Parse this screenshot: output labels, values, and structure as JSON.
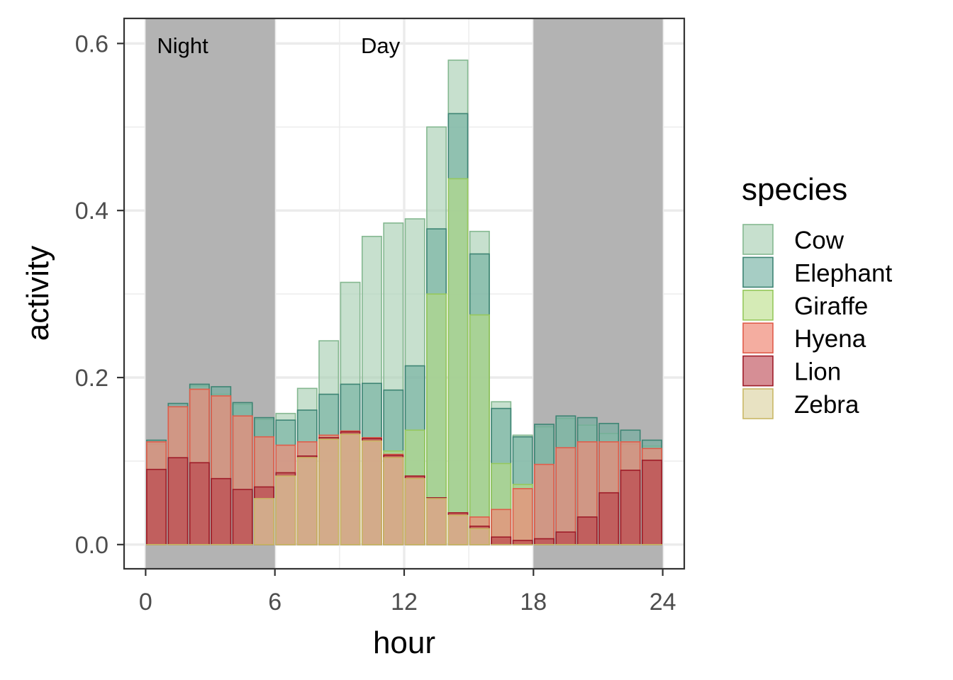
{
  "chart_data": {
    "type": "bar",
    "xlabel": "hour",
    "ylabel": "activity",
    "xlim": [
      -1,
      25
    ],
    "ylim": [
      -0.029,
      0.63
    ],
    "x_ticks": [
      "0",
      "6",
      "12",
      "18",
      "24"
    ],
    "y_ticks": [
      "0.0",
      "0.2",
      "0.4",
      "0.6"
    ],
    "grid": true,
    "legend": {
      "title": "species",
      "position": "right"
    },
    "annotations": [
      {
        "label": "Night",
        "shade": "#b3b3b3",
        "x_range": [
          0,
          6
        ]
      },
      {
        "label": "Day",
        "shade": null,
        "x_range": [
          6,
          18
        ]
      },
      {
        "label": "",
        "shade": "#b3b3b3",
        "x_range": [
          18,
          24
        ]
      }
    ],
    "hours": [
      1,
      2,
      3,
      4,
      5,
      6,
      7,
      8,
      9,
      10,
      11,
      12,
      13,
      14,
      15,
      16,
      17,
      18,
      19,
      20,
      21,
      22,
      23,
      24
    ],
    "series": [
      {
        "name": "Cow",
        "fill": "#a9cfb3",
        "stroke": "#84b890",
        "fill_opacity": 0.65,
        "values": [
          0.12,
          0.165,
          0.19,
          0.18,
          0.168,
          0.15,
          0.157,
          0.187,
          0.244,
          0.314,
          0.369,
          0.385,
          0.39,
          0.5,
          0.58,
          0.375,
          0.171,
          0.131,
          0.141,
          0.151,
          0.143,
          0.133,
          0.12,
          0.118
        ]
      },
      {
        "name": "Elephant",
        "fill": "#6aab9c",
        "stroke": "#3d8473",
        "fill_opacity": 0.6,
        "values": [
          0.125,
          0.169,
          0.192,
          0.189,
          0.17,
          0.152,
          0.149,
          0.161,
          0.18,
          0.192,
          0.193,
          0.185,
          0.214,
          0.378,
          0.516,
          0.348,
          0.163,
          0.129,
          0.144,
          0.154,
          0.152,
          0.145,
          0.137,
          0.125
        ]
      },
      {
        "name": "Giraffe",
        "fill": "#b9dd86",
        "stroke": "#96c85c",
        "fill_opacity": 0.6,
        "values": [
          0.0,
          0.0,
          0.0,
          0.0,
          0.0,
          0.0,
          0.0,
          0.0,
          0.0,
          0.0,
          0.0,
          0.112,
          0.137,
          0.3,
          0.438,
          0.275,
          0.097,
          0.072,
          0.0,
          0.0,
          0.0,
          0.0,
          0.0,
          0.0
        ]
      },
      {
        "name": "Hyena",
        "fill": "#f08a78",
        "stroke": "#e05c4a",
        "fill_opacity": 0.7,
        "values": [
          0.123,
          0.165,
          0.186,
          0.178,
          0.154,
          0.129,
          0.119,
          0.123,
          0.131,
          0.136,
          0.128,
          0.108,
          0.082,
          0.056,
          0.038,
          0.033,
          0.042,
          0.067,
          0.096,
          0.116,
          0.123,
          0.123,
          0.123,
          0.115
        ]
      },
      {
        "name": "Lion",
        "fill": "#b5323e",
        "stroke": "#9e1c28",
        "fill_opacity": 0.55,
        "values": [
          0.09,
          0.104,
          0.098,
          0.079,
          0.066,
          0.069,
          0.086,
          0.106,
          0.128,
          0.135,
          0.127,
          0.107,
          0.082,
          0.056,
          0.038,
          0.022,
          0.009,
          0.005,
          0.007,
          0.015,
          0.033,
          0.062,
          0.089,
          0.101
        ]
      },
      {
        "name": "Zebra",
        "fill": "#dcd3a2",
        "stroke": "#c9b865",
        "fill_opacity": 0.65,
        "values": [
          0.0,
          0.0,
          0.0,
          0.0,
          0.0,
          0.055,
          0.082,
          0.104,
          0.126,
          0.132,
          0.124,
          0.104,
          0.079,
          0.055,
          0.035,
          0.019,
          0.0,
          0.0,
          0.0,
          0.0,
          0.0,
          0.0,
          0.0,
          0.0
        ]
      }
    ]
  }
}
